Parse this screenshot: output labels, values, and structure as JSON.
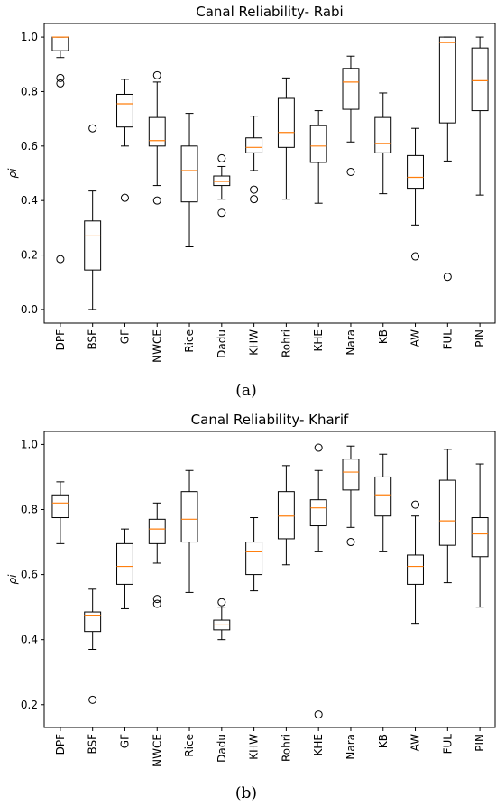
{
  "chart_data": [
    {
      "type": "boxplot",
      "title": "Canal Reliability- Rabi",
      "ylabel": "ρi",
      "ylim": [
        -0.05,
        1.05
      ],
      "yticks": [
        "0.0",
        "0.2",
        "0.4",
        "0.6",
        "0.8",
        "1.0"
      ],
      "categories": [
        "DPF",
        "BSF",
        "GF",
        "NWCE",
        "Rice",
        "Dadu",
        "KHW",
        "Rohri",
        "KHE",
        "Nara",
        "KB",
        "AW",
        "FUL",
        "PIN"
      ],
      "boxes": [
        {
          "label": "DPF",
          "whisker_low": 0.925,
          "q1": 0.95,
          "median": 1.0,
          "q3": 1.0,
          "whisker_high": 1.0,
          "outliers": [
            0.85,
            0.83,
            0.185
          ]
        },
        {
          "label": "BSF",
          "whisker_low": 0.0,
          "q1": 0.145,
          "median": 0.27,
          "q3": 0.325,
          "whisker_high": 0.435,
          "outliers": [
            0.665
          ]
        },
        {
          "label": "GF",
          "whisker_low": 0.6,
          "q1": 0.67,
          "median": 0.755,
          "q3": 0.79,
          "whisker_high": 0.845,
          "outliers": [
            0.41
          ]
        },
        {
          "label": "NWCE",
          "whisker_low": 0.455,
          "q1": 0.6,
          "median": 0.62,
          "q3": 0.705,
          "whisker_high": 0.835,
          "outliers": [
            0.86,
            0.4
          ]
        },
        {
          "label": "Rice",
          "whisker_low": 0.23,
          "q1": 0.395,
          "median": 0.51,
          "q3": 0.6,
          "whisker_high": 0.72,
          "outliers": []
        },
        {
          "label": "Dadu",
          "whisker_low": 0.405,
          "q1": 0.455,
          "median": 0.47,
          "q3": 0.49,
          "whisker_high": 0.525,
          "outliers": [
            0.555,
            0.355
          ]
        },
        {
          "label": "KHW",
          "whisker_low": 0.51,
          "q1": 0.575,
          "median": 0.595,
          "q3": 0.63,
          "whisker_high": 0.71,
          "outliers": [
            0.44,
            0.405
          ]
        },
        {
          "label": "Rohri",
          "whisker_low": 0.405,
          "q1": 0.595,
          "median": 0.65,
          "q3": 0.775,
          "whisker_high": 0.85,
          "outliers": []
        },
        {
          "label": "KHE",
          "whisker_low": 0.39,
          "q1": 0.54,
          "median": 0.6,
          "q3": 0.675,
          "whisker_high": 0.73,
          "outliers": []
        },
        {
          "label": "Nara",
          "whisker_low": 0.615,
          "q1": 0.735,
          "median": 0.835,
          "q3": 0.885,
          "whisker_high": 0.93,
          "outliers": [
            0.505
          ]
        },
        {
          "label": "KB",
          "whisker_low": 0.425,
          "q1": 0.575,
          "median": 0.61,
          "q3": 0.705,
          "whisker_high": 0.795,
          "outliers": []
        },
        {
          "label": "AW",
          "whisker_low": 0.31,
          "q1": 0.445,
          "median": 0.485,
          "q3": 0.565,
          "whisker_high": 0.665,
          "outliers": [
            0.195
          ]
        },
        {
          "label": "FUL",
          "whisker_low": 0.545,
          "q1": 0.685,
          "median": 0.98,
          "q3": 1.0,
          "whisker_high": 1.0,
          "outliers": [
            0.12
          ]
        },
        {
          "label": "PIN",
          "whisker_low": 0.42,
          "q1": 0.73,
          "median": 0.84,
          "q3": 0.96,
          "whisker_high": 1.0,
          "outliers": []
        }
      ],
      "caption": "(a)",
      "colors": {
        "median": "#ff7f0e",
        "box": "#000000"
      }
    },
    {
      "type": "boxplot",
      "title": "Canal Reliability- Kharif",
      "ylabel": "ρi",
      "ylim": [
        0.13,
        1.04
      ],
      "yticks": [
        "0.2",
        "0.4",
        "0.6",
        "0.8",
        "1.0"
      ],
      "categories": [
        "DPF",
        "BSF",
        "GF",
        "NWCE",
        "Rice",
        "Dadu",
        "KHW",
        "Rohri",
        "KHE",
        "Nara",
        "KB",
        "AW",
        "FUL",
        "PIN"
      ],
      "boxes": [
        {
          "label": "DPF",
          "whisker_low": 0.695,
          "q1": 0.775,
          "median": 0.82,
          "q3": 0.845,
          "whisker_high": 0.885,
          "outliers": []
        },
        {
          "label": "BSF",
          "whisker_low": 0.37,
          "q1": 0.425,
          "median": 0.475,
          "q3": 0.485,
          "whisker_high": 0.555,
          "outliers": [
            0.215
          ]
        },
        {
          "label": "GF",
          "whisker_low": 0.495,
          "q1": 0.57,
          "median": 0.625,
          "q3": 0.695,
          "whisker_high": 0.74,
          "outliers": []
        },
        {
          "label": "NWCE",
          "whisker_low": 0.635,
          "q1": 0.695,
          "median": 0.74,
          "q3": 0.77,
          "whisker_high": 0.82,
          "outliers": [
            0.525,
            0.51
          ]
        },
        {
          "label": "Rice",
          "whisker_low": 0.545,
          "q1": 0.7,
          "median": 0.77,
          "q3": 0.855,
          "whisker_high": 0.92,
          "outliers": []
        },
        {
          "label": "Dadu",
          "whisker_low": 0.4,
          "q1": 0.43,
          "median": 0.445,
          "q3": 0.46,
          "whisker_high": 0.5,
          "outliers": [
            0.515
          ]
        },
        {
          "label": "KHW",
          "whisker_low": 0.55,
          "q1": 0.6,
          "median": 0.67,
          "q3": 0.7,
          "whisker_high": 0.775,
          "outliers": []
        },
        {
          "label": "Rohri",
          "whisker_low": 0.63,
          "q1": 0.71,
          "median": 0.78,
          "q3": 0.855,
          "whisker_high": 0.935,
          "outliers": []
        },
        {
          "label": "KHE",
          "whisker_low": 0.67,
          "q1": 0.75,
          "median": 0.805,
          "q3": 0.83,
          "whisker_high": 0.92,
          "outliers": [
            0.99,
            0.17
          ]
        },
        {
          "label": "Nara",
          "whisker_low": 0.745,
          "q1": 0.86,
          "median": 0.915,
          "q3": 0.955,
          "whisker_high": 0.995,
          "outliers": [
            0.7
          ]
        },
        {
          "label": "KB",
          "whisker_low": 0.67,
          "q1": 0.78,
          "median": 0.845,
          "q3": 0.9,
          "whisker_high": 0.97,
          "outliers": []
        },
        {
          "label": "AW",
          "whisker_low": 0.45,
          "q1": 0.57,
          "median": 0.625,
          "q3": 0.66,
          "whisker_high": 0.78,
          "outliers": [
            0.815
          ]
        },
        {
          "label": "FUL",
          "whisker_low": 0.575,
          "q1": 0.69,
          "median": 0.765,
          "q3": 0.89,
          "whisker_high": 0.985,
          "outliers": []
        },
        {
          "label": "PIN",
          "whisker_low": 0.5,
          "q1": 0.655,
          "median": 0.725,
          "q3": 0.775,
          "whisker_high": 0.94,
          "outliers": []
        }
      ],
      "caption": "(b)",
      "colors": {
        "median": "#ff7f0e",
        "box": "#000000"
      }
    }
  ]
}
